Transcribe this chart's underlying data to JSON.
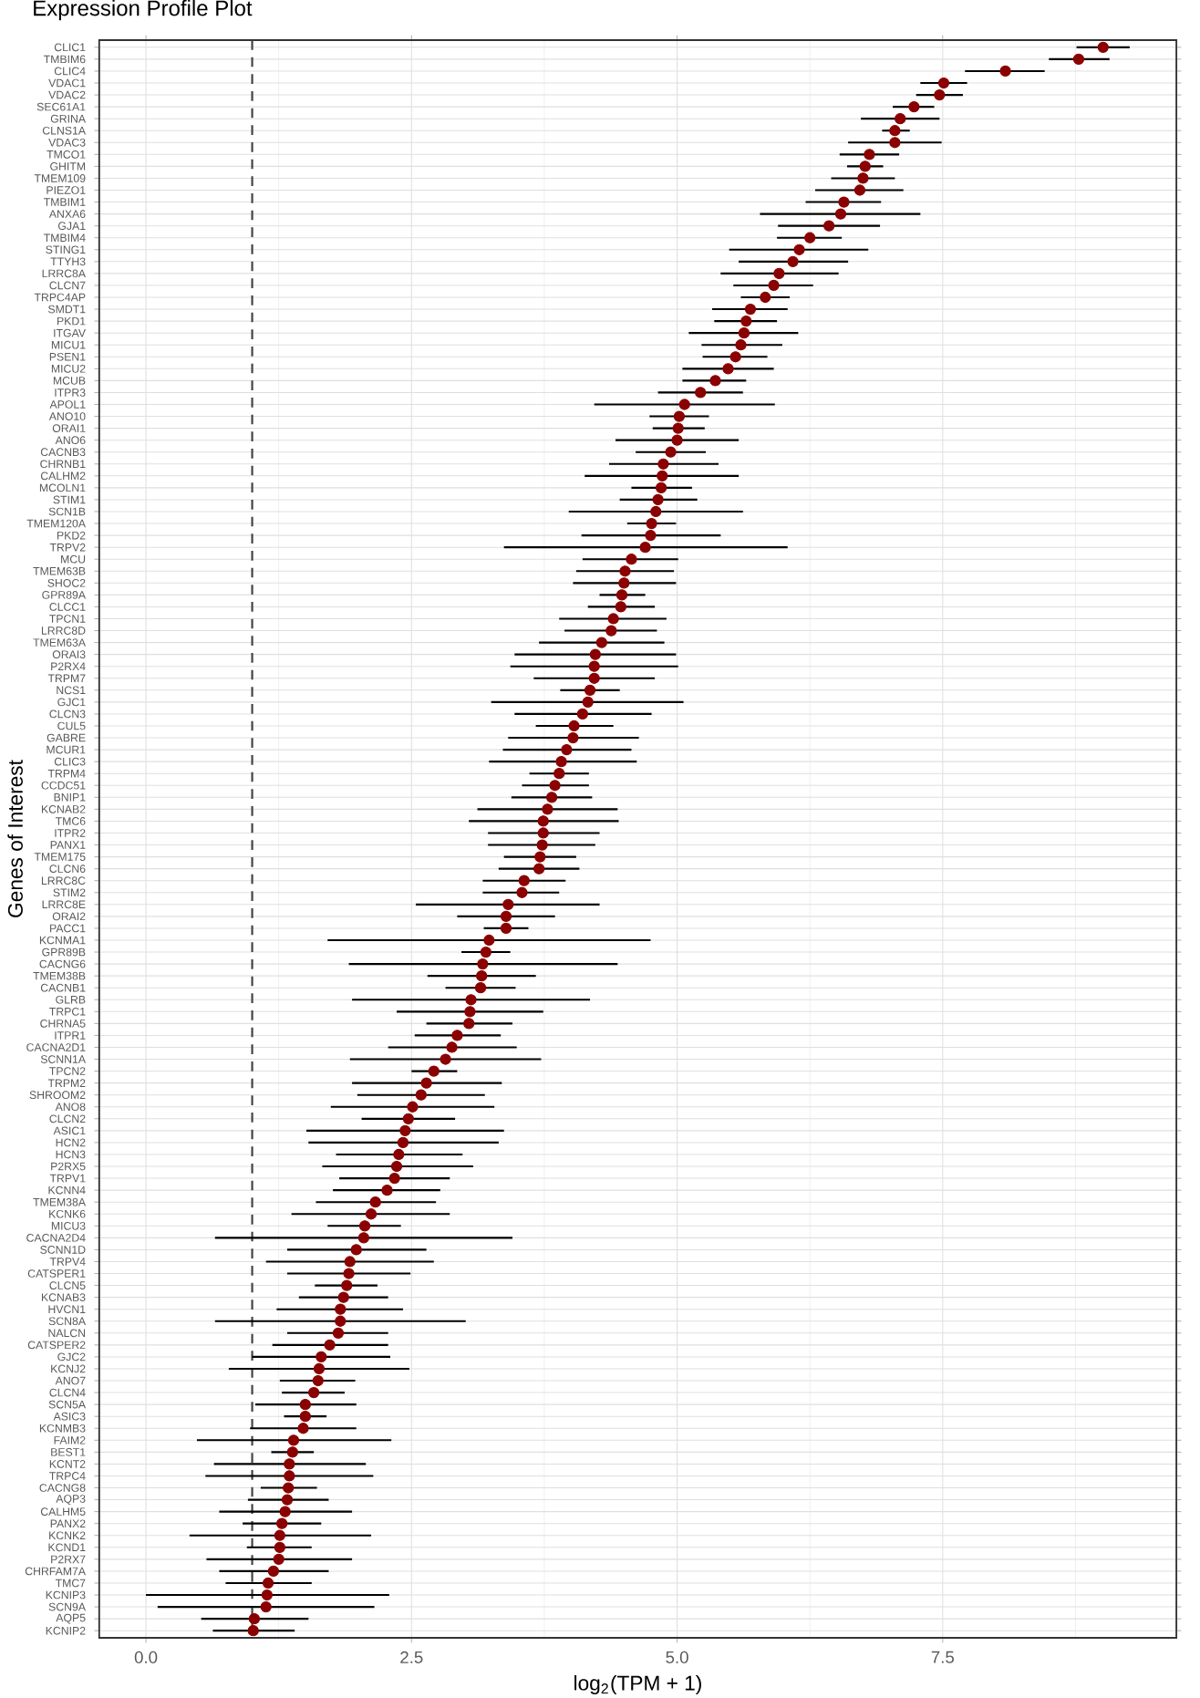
{
  "chart_data": {
    "type": "scatter",
    "orientation": "horizontal",
    "title": "Expression Profile Plot",
    "xlabel": "log$_{2}$(TPM + 1)",
    "ylabel": "Genes of Interest",
    "categories": [
      "CLIC1",
      "TMBIM6",
      "CLIC4",
      "VDAC1",
      "VDAC2",
      "SEC61A1",
      "GRINA",
      "CLNS1A",
      "VDAC3",
      "TMCO1",
      "GHITM",
      "TMEM109",
      "PIEZO1",
      "TMBIM1",
      "ANXA6",
      "GJA1",
      "TMBIM4",
      "STING1",
      "TTYH3",
      "LRRC8A",
      "CLCN7",
      "TRPC4AP",
      "SMDT1",
      "PKD1",
      "ITGAV",
      "MICU1",
      "PSEN1",
      "MICU2",
      "MCUB",
      "ITPR3",
      "APOL1",
      "ANO10",
      "ORAI1",
      "ANO6",
      "CACNB3",
      "CHRNB1",
      "CALHM2",
      "MCOLN1",
      "STIM1",
      "SCN1B",
      "TMEM120A",
      "PKD2",
      "TRPV2",
      "MCU",
      "TMEM63B",
      "SHOC2",
      "GPR89A",
      "CLCC1",
      "TPCN1",
      "LRRC8D",
      "TMEM63A",
      "ORAI3",
      "P2RX4",
      "TRPM7",
      "NCS1",
      "GJC1",
      "CLCN3",
      "CUL5",
      "GABRE",
      "MCUR1",
      "CLIC3",
      "TRPM4",
      "CCDC51",
      "BNIP1",
      "KCNAB2",
      "TMC6",
      "ITPR2",
      "PANX1",
      "TMEM175",
      "CLCN6",
      "LRRC8C",
      "STIM2",
      "LRRC8E",
      "ORAI2",
      "PACC1",
      "KCNMA1",
      "GPR89B",
      "CACNG6",
      "TMEM38B",
      "CACNB1",
      "GLRB",
      "TRPC1",
      "CHRNA5",
      "ITPR1",
      "CACNA2D1",
      "SCNN1A",
      "TPCN2",
      "TRPM2",
      "SHROOM2",
      "ANO8",
      "CLCN2",
      "ASIC1",
      "HCN2",
      "HCN3",
      "P2RX5",
      "TRPV1",
      "KCNN4",
      "TMEM38A",
      "KCNK6",
      "MICU3",
      "CACNA2D4",
      "SCNN1D",
      "TRPV4",
      "CATSPER1",
      "CLCN5",
      "KCNAB3",
      "HVCN1",
      "SCN8A",
      "NALCN",
      "CATSPER2",
      "GJC2",
      "KCNJ2",
      "ANO7",
      "CLCN4",
      "SCN5A",
      "ASIC3",
      "KCNMB3",
      "FAIM2",
      "BEST1",
      "KCNT2",
      "TRPC4",
      "CACNG8",
      "AQP3",
      "CALHM5",
      "PANX2",
      "KCNK2",
      "KCND1",
      "P2RX7",
      "CHRFAM7A",
      "TMC7",
      "KCNIP3",
      "SCN9A",
      "AQP5",
      "KCNIP2"
    ],
    "values": [
      9.01,
      8.78,
      8.09,
      7.51,
      7.47,
      7.23,
      7.1,
      7.05,
      7.05,
      6.81,
      6.77,
      6.75,
      6.72,
      6.57,
      6.54,
      6.43,
      6.25,
      6.15,
      6.09,
      5.96,
      5.91,
      5.83,
      5.69,
      5.65,
      5.63,
      5.6,
      5.55,
      5.48,
      5.36,
      5.22,
      5.07,
      5.02,
      5.01,
      5.0,
      4.94,
      4.87,
      4.86,
      4.85,
      4.82,
      4.8,
      4.76,
      4.75,
      4.7,
      4.57,
      4.51,
      4.5,
      4.48,
      4.47,
      4.4,
      4.38,
      4.29,
      4.23,
      4.22,
      4.22,
      4.18,
      4.16,
      4.11,
      4.03,
      4.02,
      3.96,
      3.91,
      3.89,
      3.85,
      3.82,
      3.78,
      3.74,
      3.74,
      3.73,
      3.71,
      3.7,
      3.56,
      3.54,
      3.41,
      3.39,
      3.39,
      3.23,
      3.2,
      3.17,
      3.16,
      3.15,
      3.06,
      3.05,
      3.04,
      2.93,
      2.88,
      2.82,
      2.71,
      2.64,
      2.59,
      2.51,
      2.47,
      2.44,
      2.42,
      2.38,
      2.36,
      2.34,
      2.27,
      2.16,
      2.12,
      2.06,
      2.05,
      1.98,
      1.92,
      1.91,
      1.89,
      1.86,
      1.83,
      1.83,
      1.81,
      1.73,
      1.65,
      1.63,
      1.62,
      1.58,
      1.5,
      1.5,
      1.48,
      1.39,
      1.38,
      1.35,
      1.35,
      1.34,
      1.33,
      1.31,
      1.28,
      1.26,
      1.26,
      1.25,
      1.2,
      1.15,
      1.14,
      1.13,
      1.02,
      1.01
    ],
    "errors": [
      [
        8.76,
        9.26
      ],
      [
        8.5,
        9.07
      ],
      [
        7.71,
        8.46
      ],
      [
        7.29,
        7.73
      ],
      [
        7.25,
        7.69
      ],
      [
        7.03,
        7.42
      ],
      [
        6.73,
        7.47
      ],
      [
        6.93,
        7.19
      ],
      [
        6.61,
        7.49
      ],
      [
        6.53,
        7.09
      ],
      [
        6.6,
        6.94
      ],
      [
        6.45,
        7.05
      ],
      [
        6.3,
        7.13
      ],
      [
        6.21,
        6.92
      ],
      [
        5.78,
        7.29
      ],
      [
        5.95,
        6.91
      ],
      [
        5.94,
        6.55
      ],
      [
        5.49,
        6.8
      ],
      [
        5.58,
        6.61
      ],
      [
        5.41,
        6.52
      ],
      [
        5.53,
        6.28
      ],
      [
        5.6,
        6.06
      ],
      [
        5.33,
        6.04
      ],
      [
        5.35,
        5.94
      ],
      [
        5.11,
        6.14
      ],
      [
        5.23,
        5.99
      ],
      [
        5.24,
        5.85
      ],
      [
        5.05,
        5.91
      ],
      [
        5.05,
        5.65
      ],
      [
        4.82,
        5.62
      ],
      [
        4.22,
        5.92
      ],
      [
        4.74,
        5.3
      ],
      [
        4.77,
        5.26
      ],
      [
        4.42,
        5.58
      ],
      [
        4.61,
        5.27
      ],
      [
        4.36,
        5.39
      ],
      [
        4.13,
        5.58
      ],
      [
        4.57,
        5.14
      ],
      [
        4.46,
        5.19
      ],
      [
        3.98,
        5.62
      ],
      [
        4.53,
        4.99
      ],
      [
        4.1,
        5.41
      ],
      [
        3.37,
        6.04
      ],
      [
        4.11,
        5.01
      ],
      [
        4.05,
        4.97
      ],
      [
        4.02,
        4.99
      ],
      [
        4.27,
        4.7
      ],
      [
        4.16,
        4.79
      ],
      [
        3.89,
        4.9
      ],
      [
        3.94,
        4.81
      ],
      [
        3.7,
        4.88
      ],
      [
        3.47,
        4.99
      ],
      [
        3.43,
        5.01
      ],
      [
        3.65,
        4.79
      ],
      [
        3.9,
        4.46
      ],
      [
        3.25,
        5.06
      ],
      [
        3.47,
        4.76
      ],
      [
        3.67,
        4.4
      ],
      [
        3.41,
        4.64
      ],
      [
        3.36,
        4.57
      ],
      [
        3.23,
        4.62
      ],
      [
        3.61,
        4.17
      ],
      [
        3.54,
        4.17
      ],
      [
        3.44,
        4.2
      ],
      [
        3.12,
        4.44
      ],
      [
        3.04,
        4.45
      ],
      [
        3.22,
        4.27
      ],
      [
        3.22,
        4.23
      ],
      [
        3.37,
        4.05
      ],
      [
        3.32,
        4.08
      ],
      [
        3.17,
        3.95
      ],
      [
        3.17,
        3.89
      ],
      [
        2.54,
        4.27
      ],
      [
        2.93,
        3.85
      ],
      [
        3.18,
        3.6
      ],
      [
        1.71,
        4.75
      ],
      [
        2.97,
        3.43
      ],
      [
        1.91,
        4.44
      ],
      [
        2.65,
        3.67
      ],
      [
        2.82,
        3.48
      ],
      [
        1.94,
        4.18
      ],
      [
        2.36,
        3.74
      ],
      [
        2.64,
        3.45
      ],
      [
        2.53,
        3.34
      ],
      [
        2.28,
        3.49
      ],
      [
        1.92,
        3.72
      ],
      [
        2.5,
        2.93
      ],
      [
        1.94,
        3.35
      ],
      [
        1.99,
        3.19
      ],
      [
        1.74,
        3.28
      ],
      [
        2.03,
        2.91
      ],
      [
        1.51,
        3.37
      ],
      [
        1.53,
        3.32
      ],
      [
        1.79,
        2.98
      ],
      [
        1.66,
        3.08
      ],
      [
        1.82,
        2.86
      ],
      [
        1.76,
        2.77
      ],
      [
        1.6,
        2.73
      ],
      [
        1.37,
        2.86
      ],
      [
        1.71,
        2.4
      ],
      [
        0.65,
        3.45
      ],
      [
        1.33,
        2.64
      ],
      [
        1.13,
        2.71
      ],
      [
        1.33,
        2.49
      ],
      [
        1.59,
        2.18
      ],
      [
        1.44,
        2.28
      ],
      [
        1.23,
        2.42
      ],
      [
        0.65,
        3.01
      ],
      [
        1.33,
        2.28
      ],
      [
        1.19,
        2.28
      ],
      [
        1.0,
        2.3
      ],
      [
        0.78,
        2.48
      ],
      [
        1.26,
        1.97
      ],
      [
        1.28,
        1.87
      ],
      [
        1.03,
        1.98
      ],
      [
        1.3,
        1.7
      ],
      [
        0.98,
        1.98
      ],
      [
        0.48,
        2.31
      ],
      [
        1.18,
        1.58
      ],
      [
        0.64,
        2.07
      ],
      [
        0.56,
        2.14
      ],
      [
        1.08,
        1.61
      ],
      [
        0.96,
        1.72
      ],
      [
        0.69,
        1.94
      ],
      [
        0.91,
        1.65
      ],
      [
        0.41,
        2.12
      ],
      [
        0.95,
        1.56
      ],
      [
        0.57,
        1.94
      ],
      [
        0.69,
        1.72
      ],
      [
        0.75,
        1.56
      ],
      [
        0.0,
        2.29
      ],
      [
        0.11,
        2.15
      ],
      [
        0.52,
        1.53
      ],
      [
        0.63,
        1.4
      ]
    ],
    "color": "#8b0000",
    "grid": true,
    "xlim": [
      -0.44,
      9.7
    ],
    "xticks": [
      {
        "value": 0,
        "label": "0.0"
      },
      2.5,
      {
        "value": 5,
        "label": "5.0"
      },
      7.5
    ],
    "ref_lines": [
      {
        "axis": "x",
        "value": 1.0,
        "color": "#404040",
        "line_style": "dashed"
      }
    ]
  }
}
